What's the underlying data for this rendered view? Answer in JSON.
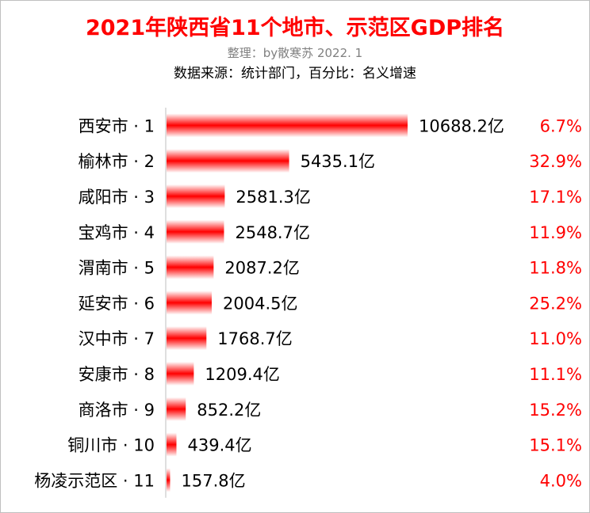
{
  "colors": {
    "title": "#ff0000",
    "bar": "#ff0000",
    "growth": "#ff0000",
    "subtitle_gray": "#808080",
    "text": "#000000",
    "axis": "#bfbfbf"
  },
  "chart_data": {
    "type": "bar",
    "orientation": "horizontal",
    "title": "2021年陕西省11个地市、示范区GDP排名",
    "subtitle": "整理：by散寒苏  2022. 1",
    "source_note": "数据来源：统计部门，百分比：名义增速",
    "categories": [
      "西安市 · 1",
      "榆林市 · 2",
      "咸阳市 · 3",
      "宝鸡市 · 4",
      "渭南市 · 5",
      "延安市 · 6",
      "汉中市 · 7",
      "安康市 · 8",
      "商洛市 · 9",
      "铜川市 · 10",
      "杨凌示范区 · 11"
    ],
    "values": [
      10688.2,
      5435.1,
      2581.3,
      2548.7,
      2087.2,
      2004.5,
      1768.7,
      1209.4,
      852.2,
      439.4,
      157.8
    ],
    "value_labels": [
      "10688.2亿",
      "5435.1亿",
      "2581.3亿",
      "2548.7亿",
      "2087.2亿",
      "2004.5亿",
      "1768.7亿",
      "1209.4亿",
      "852.2亿",
      "439.4亿",
      "157.8亿"
    ],
    "growth_labels": [
      "6.7%",
      "32.9%",
      "17.1%",
      "11.9%",
      "11.8%",
      "25.2%",
      "11.0%",
      "11.1%",
      "15.2%",
      "15.1%",
      "4.0%"
    ],
    "xlim": [
      0,
      10688.2
    ],
    "grid": false,
    "legend": "none"
  }
}
